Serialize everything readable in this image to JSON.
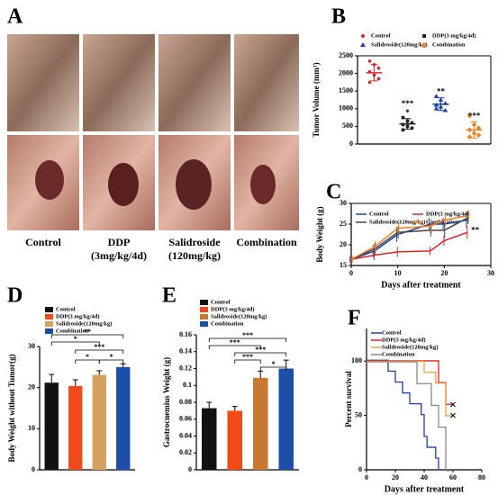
{
  "figure_a": {
    "panel": "A",
    "captions": [
      [
        "Control"
      ],
      [
        "DDP",
        "(3mg/kg/4d)"
      ],
      [
        "Salidroside",
        "(120mg/kg)"
      ],
      [
        "Combination"
      ]
    ]
  },
  "chart_data": [
    {
      "panel": "B",
      "type": "dot",
      "y_label": "Tumor Volume (mm³)",
      "ylim": [
        0,
        2500
      ],
      "yticks": [
        0,
        500,
        1000,
        1500,
        2000,
        2500
      ],
      "series": [
        {
          "name": "Control",
          "color": "#d62728",
          "marker": "circle",
          "values": [
            2020
          ],
          "errors": [
            230
          ],
          "points": [
            2350,
            2250,
            2150,
            2050,
            1950,
            1850,
            1750,
            1950
          ]
        },
        {
          "name": "DDP(3 mg/kg/4d)",
          "color": "#222222",
          "marker": "square",
          "values": [
            570
          ],
          "errors": [
            150
          ],
          "points": [
            750,
            650,
            600,
            550,
            500,
            450,
            400
          ],
          "annotations": [
            "*",
            "***"
          ]
        },
        {
          "name": "Salidroside(120mg/kg)",
          "color": "#1f3fa8",
          "marker": "triangle",
          "values": [
            1130
          ],
          "errors": [
            180
          ],
          "points": [
            1350,
            1250,
            1150,
            1100,
            1050,
            950,
            1000
          ],
          "annotations": [
            "**"
          ]
        },
        {
          "name": "Combination",
          "color": "#f08020",
          "marker": "diamond",
          "values": [
            400
          ],
          "errors": [
            230
          ],
          "points": [
            800,
            550,
            450,
            400,
            300,
            250,
            200
          ],
          "annotations": [
            "***"
          ]
        }
      ]
    },
    {
      "panel": "C",
      "type": "line",
      "x_label": "Days after treatment",
      "y_label": "Body Weight (g)",
      "xlim": [
        0,
        30
      ],
      "xticks": [
        0,
        10,
        20,
        30
      ],
      "ylim": [
        15,
        30
      ],
      "yticks": [
        15,
        20,
        25,
        30
      ],
      "x": [
        0,
        5,
        10,
        17,
        20,
        25
      ],
      "annotation": "**",
      "series": [
        {
          "name": "Control",
          "color": "#1f3fa8",
          "values": [
            16.5,
            18.5,
            22.5,
            25,
            25,
            26
          ],
          "errors": [
            0.8,
            1.5,
            1.8,
            1.5,
            1.5,
            1.8
          ]
        },
        {
          "name": "DDP(3 mg/kg/4d)",
          "color": "#d62728",
          "values": [
            16.5,
            17.5,
            18.3,
            18.5,
            21,
            23
          ],
          "errors": [
            0.8,
            1.2,
            1.2,
            1,
            1.2,
            1.5
          ]
        },
        {
          "name": "Salidroside(120mg/kg)",
          "color": "#444444",
          "values": [
            16.5,
            19,
            23,
            23.5,
            23.5,
            26.5
          ],
          "errors": [
            0.8,
            1.5,
            1.5,
            1.5,
            1.8,
            1.5
          ]
        },
        {
          "name": "Combination",
          "color": "#f08020",
          "values": [
            16.5,
            19.5,
            24,
            24.5,
            26,
            27
          ],
          "errors": [
            0.8,
            1.5,
            1.5,
            1.8,
            1.5,
            1.5
          ]
        }
      ]
    },
    {
      "panel": "D",
      "type": "bar",
      "y_label": "Body Weight without Tumor(g)",
      "ylim": [
        0,
        30
      ],
      "yticks": [
        0,
        10,
        20,
        30
      ],
      "comparisons": [
        "**",
        "*",
        "***",
        "*",
        "*"
      ],
      "series": [
        {
          "name": "Control",
          "color": "#111111",
          "values": [
            21.2
          ],
          "errors": [
            2
          ]
        },
        {
          "name": "DDP(3 mg/kg/4d)",
          "color": "#f04a1a",
          "values": [
            20.4
          ],
          "errors": [
            1.5
          ]
        },
        {
          "name": "Salidroside(120mg/kg)",
          "color": "#d6a060",
          "values": [
            23.1
          ],
          "errors": [
            1
          ]
        },
        {
          "name": "Combination",
          "color": "#1e4fa8",
          "values": [
            25
          ],
          "errors": [
            0.8
          ]
        }
      ]
    },
    {
      "panel": "E",
      "type": "bar",
      "y_label": "Gastrocnemius Weight (g)",
      "ylim": [
        0,
        0.16
      ],
      "yticks": [
        0,
        0.02,
        0.04,
        0.06,
        0.08,
        0.1,
        0.12,
        0.14,
        0.16
      ],
      "comparisons": [
        "***",
        "***",
        "***",
        "***",
        "*"
      ],
      "series": [
        {
          "name": "Control",
          "color": "#111111",
          "values": [
            0.073
          ],
          "errors": [
            0.007
          ]
        },
        {
          "name": "DDP(3 mg/kg/4d)",
          "color": "#f04a1a",
          "values": [
            0.07
          ],
          "errors": [
            0.005
          ]
        },
        {
          "name": "Salidroside(120mg/kg)",
          "color": "#c87830",
          "values": [
            0.109
          ],
          "errors": [
            0.008
          ]
        },
        {
          "name": "Combination",
          "color": "#1e4fa8",
          "values": [
            0.12
          ],
          "errors": [
            0.01
          ]
        }
      ]
    },
    {
      "panel": "F",
      "type": "step",
      "x_label": "Days after treatment",
      "y_label": "Percent survival",
      "xlim": [
        0,
        80
      ],
      "xticks": [
        0,
        20,
        40,
        60,
        80
      ],
      "ylim": [
        0,
        130
      ],
      "yticks": [
        0,
        50,
        100
      ],
      "series": [
        {
          "name": "Control",
          "color": "#1f3fa8",
          "x": [
            0,
            15,
            20,
            25,
            30,
            38,
            40,
            42,
            48,
            50
          ],
          "values": [
            100,
            90,
            80,
            70,
            60,
            50,
            30,
            20,
            10,
            0
          ]
        },
        {
          "name": "DDP(3 mg/kg/4d)",
          "color": "#e02020",
          "x": [
            0,
            50,
            55,
            60
          ],
          "values": [
            100,
            80,
            60,
            60
          ],
          "censored": true
        },
        {
          "name": "Salidroside(120mg/kg)",
          "color": "#f0a040",
          "x": [
            0,
            40,
            48,
            55,
            60
          ],
          "values": [
            100,
            90,
            80,
            50,
            50
          ],
          "censored": true
        },
        {
          "name": "Combination",
          "color": "#888888",
          "x": [
            0,
            35,
            45,
            50,
            55,
            60
          ],
          "values": [
            100,
            80,
            60,
            40,
            0,
            0
          ]
        }
      ]
    }
  ]
}
